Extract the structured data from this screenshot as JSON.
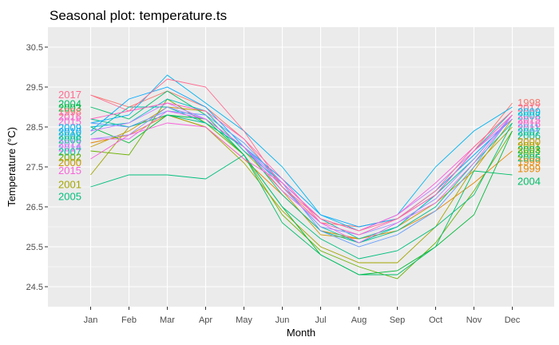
{
  "chart_data": {
    "type": "line",
    "title": "Seasonal plot: temperature.ts",
    "xlabel": "Month",
    "ylabel": "Temperature (°C)",
    "categories": [
      "Jan",
      "Feb",
      "Mar",
      "Apr",
      "May",
      "Jun",
      "Jul",
      "Aug",
      "Sep",
      "Oct",
      "Nov",
      "Dec"
    ],
    "yticks": [
      24.5,
      25.5,
      26.5,
      27.5,
      28.5,
      29.5,
      30.5
    ],
    "ylim": [
      24.0,
      31.0
    ],
    "grid": true,
    "legend": "none",
    "series": [
      {
        "name": "1998",
        "color": "#f8766d",
        "values": [
          29.3,
          29.0,
          29.4,
          29.0,
          28.2,
          27.0,
          26.1,
          26.0,
          26.2,
          26.8,
          27.9,
          29.1
        ]
      },
      {
        "name": "1999",
        "color": "#e58700",
        "values": [
          28.1,
          28.3,
          28.8,
          28.5,
          27.7,
          26.8,
          25.9,
          25.7,
          25.9,
          26.4,
          27.1,
          27.9
        ]
      },
      {
        "name": "2000",
        "color": "#c99800",
        "values": [
          28.0,
          28.4,
          29.0,
          28.9,
          27.9,
          26.9,
          25.8,
          25.7,
          26.0,
          26.6,
          27.4,
          28.7
        ]
      },
      {
        "name": "2001",
        "color": "#a3a500",
        "values": [
          27.3,
          28.5,
          28.8,
          28.5,
          27.6,
          26.4,
          25.5,
          25.1,
          25.1,
          26.0,
          27.5,
          28.5
        ]
      },
      {
        "name": "2002",
        "color": "#6bb100",
        "values": [
          27.9,
          27.8,
          29.2,
          28.6,
          27.8,
          26.3,
          25.4,
          25.0,
          24.7,
          25.6,
          26.9,
          28.4
        ]
      },
      {
        "name": "2003",
        "color": "#00ba38",
        "values": [
          28.5,
          28.1,
          28.8,
          28.7,
          27.8,
          26.5,
          25.3,
          24.8,
          24.9,
          25.5,
          26.3,
          28.4
        ]
      },
      {
        "name": "2004",
        "color": "#00be67",
        "values": [
          29.0,
          28.7,
          29.4,
          28.8,
          27.8,
          26.1,
          25.3,
          24.8,
          24.8,
          25.5,
          27.4,
          27.3
        ]
      },
      {
        "name": "2005",
        "color": "#00bf7d",
        "values": [
          27.0,
          27.3,
          27.3,
          27.2,
          27.8,
          26.5,
          25.7,
          25.2,
          25.4,
          26.0,
          26.8,
          28.6
        ]
      },
      {
        "name": "2006",
        "color": "#00c08b",
        "values": [
          28.7,
          28.5,
          28.8,
          28.6,
          28.0,
          26.8,
          25.9,
          25.6,
          25.9,
          26.5,
          27.6,
          28.6
        ]
      },
      {
        "name": "2007",
        "color": "#00c1a9",
        "values": [
          28.3,
          29.0,
          29.0,
          28.6,
          28.0,
          27.0,
          26.0,
          25.6,
          26.0,
          26.8,
          27.7,
          28.8
        ]
      },
      {
        "name": "2008",
        "color": "#00bfc4",
        "values": [
          28.5,
          28.6,
          29.2,
          28.9,
          27.9,
          27.1,
          26.2,
          25.7,
          26.0,
          26.8,
          27.9,
          28.9
        ]
      },
      {
        "name": "2009",
        "color": "#00b4f0",
        "values": [
          28.6,
          28.8,
          29.8,
          29.1,
          28.4,
          27.5,
          26.3,
          25.9,
          26.3,
          27.5,
          28.4,
          29.0
        ]
      },
      {
        "name": "2010",
        "color": "#00a9ff",
        "values": [
          28.4,
          29.2,
          29.5,
          29.0,
          28.0,
          27.2,
          26.3,
          26.0,
          26.2,
          26.9,
          27.8,
          28.7
        ]
      },
      {
        "name": "2011",
        "color": "#619cff",
        "values": [
          28.6,
          28.5,
          28.9,
          28.8,
          28.1,
          27.1,
          25.9,
          25.5,
          25.8,
          26.4,
          27.5,
          28.8
        ]
      },
      {
        "name": "2012",
        "color": "#9590ff",
        "values": [
          28.2,
          28.3,
          29.0,
          28.7,
          28.0,
          27.0,
          26.0,
          25.8,
          26.1,
          26.7,
          27.7,
          28.8
        ]
      },
      {
        "name": "2013",
        "color": "#c77cff",
        "values": [
          28.4,
          28.6,
          29.1,
          28.7,
          28.0,
          27.1,
          26.2,
          25.9,
          26.3,
          27.0,
          27.9,
          28.7
        ]
      },
      {
        "name": "2014",
        "color": "#e76bf3",
        "values": [
          28.2,
          28.2,
          28.9,
          28.7,
          28.0,
          26.9,
          26.1,
          25.6,
          26.1,
          26.6,
          27.6,
          28.8
        ]
      },
      {
        "name": "2015",
        "color": "#fa62db",
        "values": [
          27.7,
          28.3,
          28.6,
          28.5,
          27.7,
          27.1,
          26.2,
          25.9,
          26.3,
          27.1,
          28.0,
          28.9
        ]
      },
      {
        "name": "2016",
        "color": "#ff62bc",
        "values": [
          28.7,
          28.9,
          29.1,
          28.9,
          28.2,
          27.2,
          26.1,
          25.8,
          26.2,
          26.8,
          27.9,
          28.8
        ]
      },
      {
        "name": "2017",
        "color": "#ff6c91",
        "values": [
          29.3,
          28.9,
          29.7,
          29.5,
          28.4,
          27.0,
          26.2,
          25.9,
          26.2,
          26.9,
          28.0,
          28.9
        ]
      }
    ],
    "left_labels": [
      {
        "text": "2017",
        "y": 29.3,
        "color": "#ff6c91"
      },
      {
        "text": "2004",
        "y": 29.07,
        "color": "#00be67"
      },
      {
        "text": "2003",
        "y": 28.97,
        "color": "#00ba38"
      },
      {
        "text": "1998",
        "y": 28.87,
        "color": "#f8766d"
      },
      {
        "text": "2016",
        "y": 28.75,
        "color": "#ff62bc"
      },
      {
        "text": "2015",
        "y": 28.63,
        "color": "#fa62db"
      },
      {
        "text": "2009",
        "y": 28.47,
        "color": "#00b4f0"
      },
      {
        "text": "2010",
        "y": 28.37,
        "color": "#00a9ff"
      },
      {
        "text": "2008",
        "y": 28.27,
        "color": "#00bfc4"
      },
      {
        "text": "2006",
        "y": 28.17,
        "color": "#00c08b"
      },
      {
        "text": "2012",
        "y": 28.07,
        "color": "#9590ff"
      },
      {
        "text": "2014",
        "y": 27.97,
        "color": "#e76bf3"
      },
      {
        "text": "2007",
        "y": 27.87,
        "color": "#00c1a9"
      },
      {
        "text": "2002",
        "y": 27.73,
        "color": "#6bb100"
      },
      {
        "text": "2000",
        "y": 27.6,
        "color": "#c99800"
      },
      {
        "text": "2015",
        "y": 27.4,
        "color": "#fa62db"
      },
      {
        "text": "2001",
        "y": 27.05,
        "color": "#a3a500"
      },
      {
        "text": "2005",
        "y": 26.75,
        "color": "#00bf7d"
      }
    ],
    "right_labels": [
      {
        "text": "1998",
        "y": 29.1,
        "color": "#f8766d"
      },
      {
        "text": "2017",
        "y": 28.97,
        "color": "#ff6c91"
      },
      {
        "text": "2009",
        "y": 28.87,
        "color": "#00b4f0"
      },
      {
        "text": "2008",
        "y": 28.77,
        "color": "#00bfc4"
      },
      {
        "text": "2015",
        "y": 28.67,
        "color": "#fa62db"
      },
      {
        "text": "2016",
        "y": 28.57,
        "color": "#ff62bc"
      },
      {
        "text": "2011",
        "y": 28.47,
        "color": "#619cff"
      },
      {
        "text": "2007",
        "y": 28.37,
        "color": "#00c1a9"
      },
      {
        "text": "2006",
        "y": 28.27,
        "color": "#00c08b"
      },
      {
        "text": "2000",
        "y": 28.12,
        "color": "#c99800"
      },
      {
        "text": "2001",
        "y": 28.02,
        "color": "#a3a500"
      },
      {
        "text": "2003",
        "y": 27.92,
        "color": "#00ba38"
      },
      {
        "text": "2002",
        "y": 27.82,
        "color": "#6bb100"
      },
      {
        "text": "2005",
        "y": 27.72,
        "color": "#00bf7d"
      },
      {
        "text": "1999",
        "y": 27.62,
        "color": "#e58700"
      },
      {
        "text": "1999",
        "y": 27.45,
        "color": "#e58700"
      },
      {
        "text": "2004",
        "y": 27.13,
        "color": "#00be67"
      }
    ]
  }
}
